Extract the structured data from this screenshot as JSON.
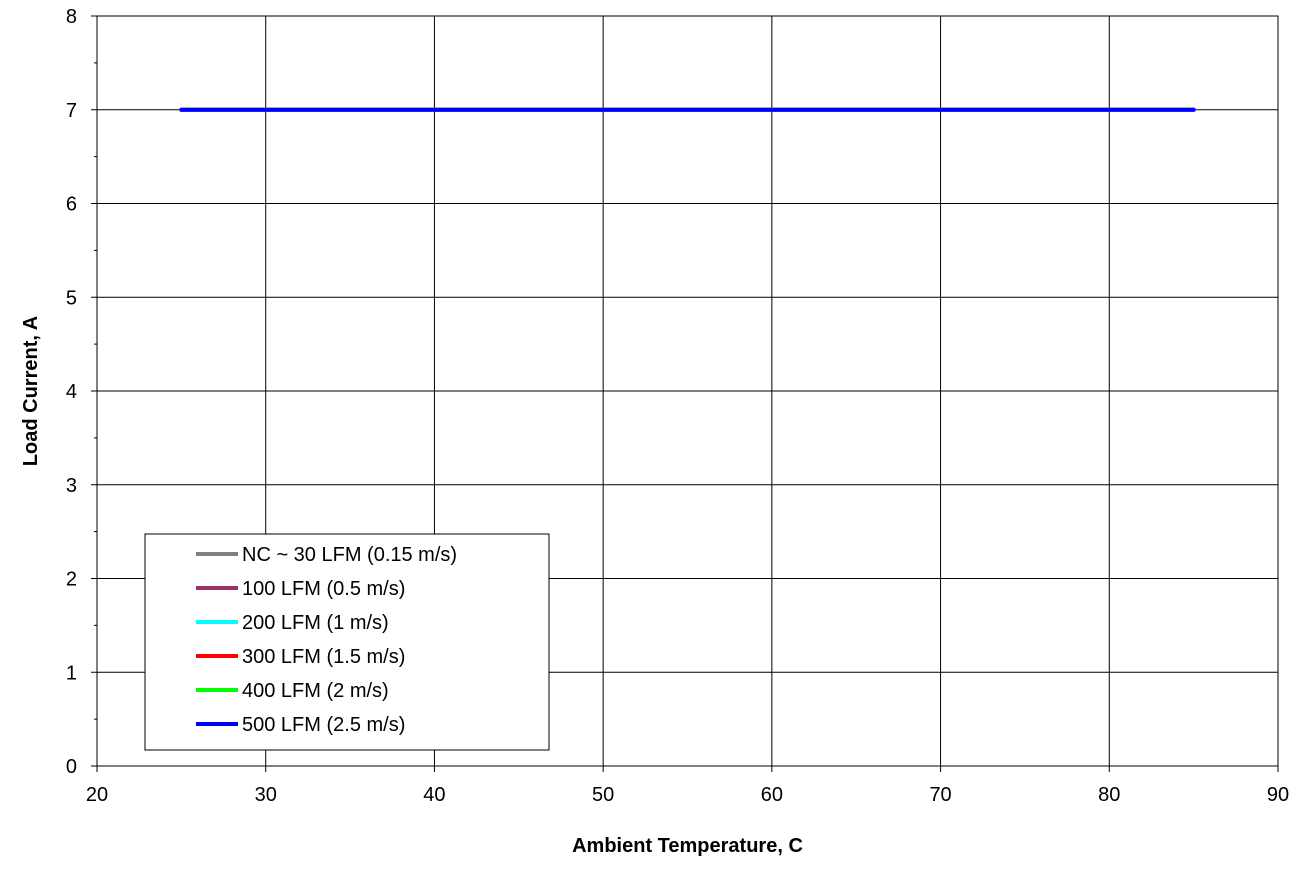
{
  "chart_data": {
    "type": "line",
    "title": "",
    "xlabel": "Ambient Temperature, C",
    "ylabel": "Load Current, A",
    "xlim": [
      20,
      90
    ],
    "ylim": [
      0,
      8
    ],
    "xticks": [
      20,
      30,
      40,
      50,
      60,
      70,
      80,
      90
    ],
    "yticks": [
      0,
      1,
      2,
      3,
      4,
      5,
      6,
      7,
      8
    ],
    "grid": true,
    "legend_position": "bottom-left",
    "series": [
      {
        "name": "NC ~ 30 LFM (0.15 m/s)",
        "color": "#808080",
        "x": [
          25,
          85
        ],
        "y": [
          7,
          7
        ]
      },
      {
        "name": "100 LFM (0.5 m/s)",
        "color": "#993366",
        "x": [
          25,
          85
        ],
        "y": [
          7,
          7
        ]
      },
      {
        "name": "200 LFM (1 m/s)",
        "color": "#00ffff",
        "x": [
          25,
          85
        ],
        "y": [
          7,
          7
        ]
      },
      {
        "name": "300 LFM (1.5 m/s)",
        "color": "#ff0000",
        "x": [
          25,
          85
        ],
        "y": [
          7,
          7
        ]
      },
      {
        "name": "400 LFM (2 m/s)",
        "color": "#00ff00",
        "x": [
          25,
          85
        ],
        "y": [
          7,
          7
        ]
      },
      {
        "name": "500 LFM (2.5 m/s)",
        "color": "#0000ff",
        "x": [
          25,
          85
        ],
        "y": [
          7,
          7
        ]
      }
    ]
  }
}
